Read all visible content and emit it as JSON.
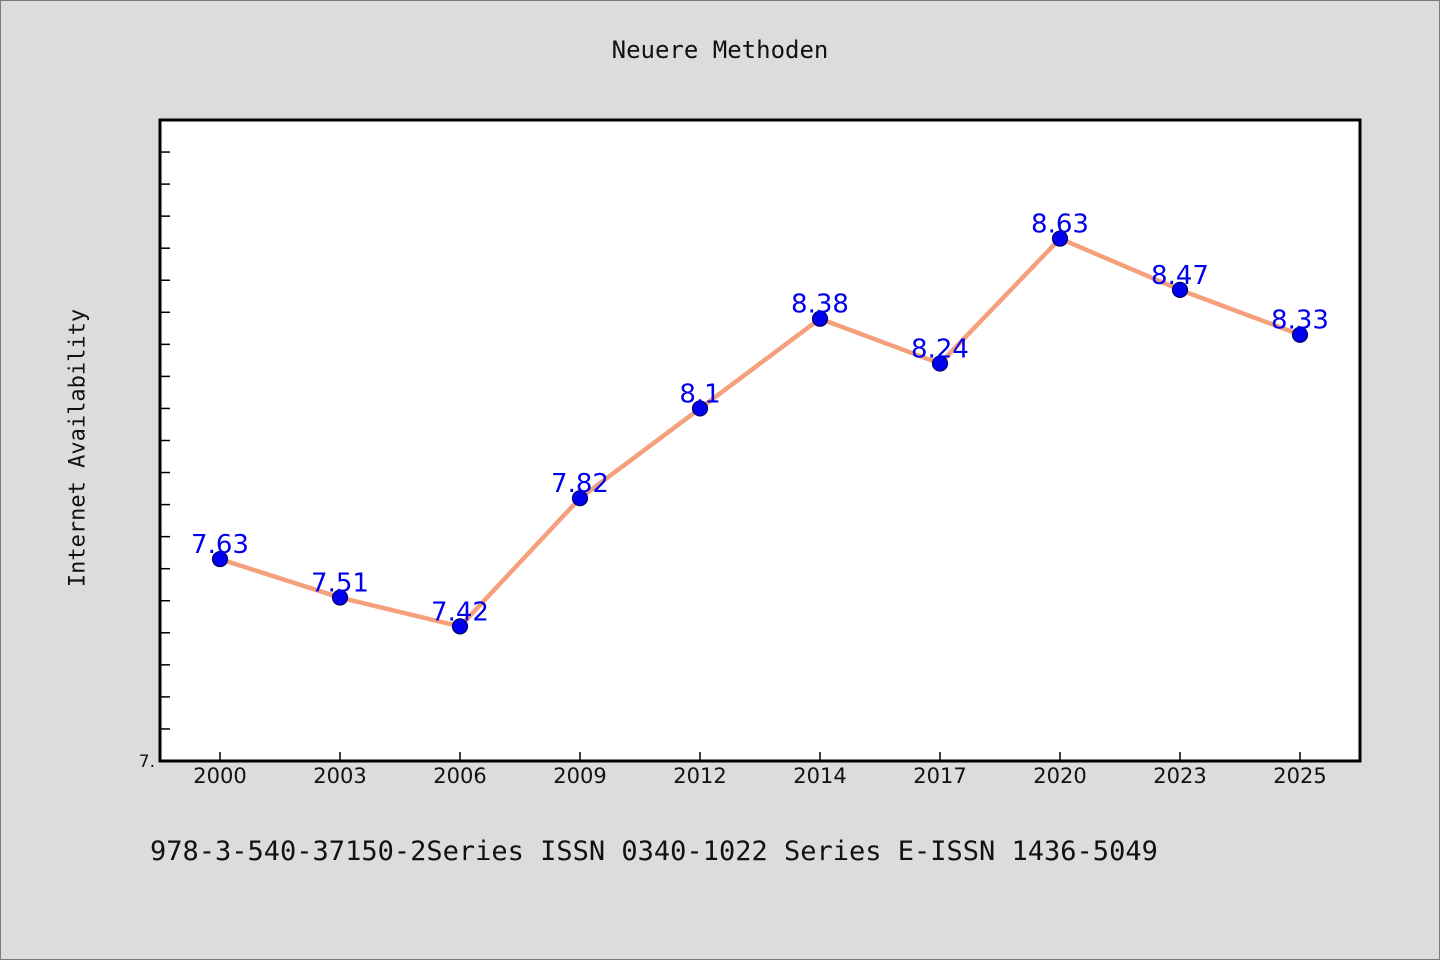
{
  "chart_data": {
    "type": "line",
    "title": "Neuere Methoden",
    "xlabel": "",
    "ylabel": "Internet Availability",
    "categories": [
      "2000",
      "2003",
      "2006",
      "2009",
      "2012",
      "2014",
      "2017",
      "2020",
      "2023",
      "2025"
    ],
    "series": [
      {
        "values": [
          7.63,
          7.51,
          7.42,
          7.82,
          8.1,
          8.38,
          8.24,
          8.63,
          8.47,
          8.33
        ],
        "data_labels": [
          "7.63",
          "7.51",
          "7.42",
          "7.82",
          "8.1",
          "8.38",
          "8.24",
          "8.63",
          "8.47",
          "8.33"
        ]
      }
    ],
    "ylim": [
      7.0,
      9.0
    ],
    "y_tick_labels": [
      "7."
    ],
    "grid": false,
    "legend": "none",
    "colors": {
      "line": "#f4a07c",
      "marker": "#0000ee",
      "marker_edge": "#000066",
      "data_label": "#0000ee",
      "plot_background": "#ffffff",
      "figure_background": "#dcdcdc"
    }
  },
  "footer_text": "978-3-540-37150-2Series ISSN 0340-1022 Series E-ISSN 1436-5049"
}
